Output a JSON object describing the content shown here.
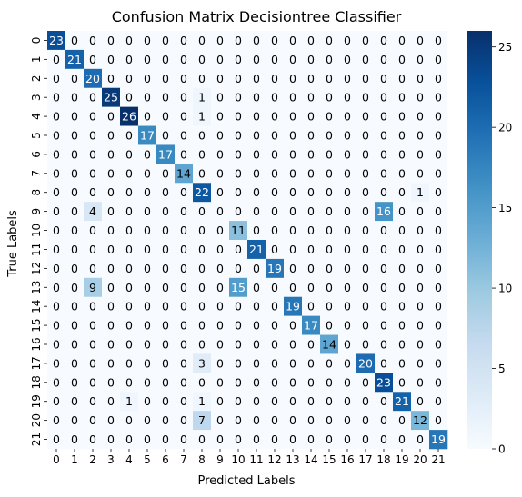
{
  "chart_data": {
    "type": "heatmap",
    "title": "Confusion Matrix Decisiontree Classifier",
    "xlabel": "Predicted Labels",
    "ylabel": "True Labels",
    "x_categories": [
      "0",
      "1",
      "2",
      "3",
      "4",
      "5",
      "6",
      "7",
      "8",
      "9",
      "10",
      "11",
      "12",
      "13",
      "14",
      "15",
      "16",
      "17",
      "18",
      "19",
      "20",
      "21"
    ],
    "y_categories": [
      "0",
      "1",
      "2",
      "3",
      "4",
      "5",
      "6",
      "7",
      "8",
      "9",
      "10",
      "11",
      "12",
      "13",
      "14",
      "15",
      "16",
      "17",
      "18",
      "19",
      "20",
      "21"
    ],
    "colormap": "Blues",
    "vmin": 0,
    "vmax": 26,
    "colorbar_ticks": [
      0,
      5,
      10,
      15,
      20,
      25
    ],
    "matrix": [
      [
        23,
        0,
        0,
        0,
        0,
        0,
        0,
        0,
        0,
        0,
        0,
        0,
        0,
        0,
        0,
        0,
        0,
        0,
        0,
        0,
        0,
        0
      ],
      [
        0,
        21,
        0,
        0,
        0,
        0,
        0,
        0,
        0,
        0,
        0,
        0,
        0,
        0,
        0,
        0,
        0,
        0,
        0,
        0,
        0,
        0
      ],
      [
        0,
        0,
        20,
        0,
        0,
        0,
        0,
        0,
        0,
        0,
        0,
        0,
        0,
        0,
        0,
        0,
        0,
        0,
        0,
        0,
        0,
        0
      ],
      [
        0,
        0,
        0,
        25,
        0,
        0,
        0,
        0,
        1,
        0,
        0,
        0,
        0,
        0,
        0,
        0,
        0,
        0,
        0,
        0,
        0,
        0
      ],
      [
        0,
        0,
        0,
        0,
        26,
        0,
        0,
        0,
        1,
        0,
        0,
        0,
        0,
        0,
        0,
        0,
        0,
        0,
        0,
        0,
        0,
        0
      ],
      [
        0,
        0,
        0,
        0,
        0,
        17,
        0,
        0,
        0,
        0,
        0,
        0,
        0,
        0,
        0,
        0,
        0,
        0,
        0,
        0,
        0,
        0
      ],
      [
        0,
        0,
        0,
        0,
        0,
        0,
        17,
        0,
        0,
        0,
        0,
        0,
        0,
        0,
        0,
        0,
        0,
        0,
        0,
        0,
        0,
        0
      ],
      [
        0,
        0,
        0,
        0,
        0,
        0,
        0,
        14,
        0,
        0,
        0,
        0,
        0,
        0,
        0,
        0,
        0,
        0,
        0,
        0,
        0,
        0
      ],
      [
        0,
        0,
        0,
        0,
        0,
        0,
        0,
        0,
        22,
        0,
        0,
        0,
        0,
        0,
        0,
        0,
        0,
        0,
        0,
        0,
        1,
        0
      ],
      [
        0,
        0,
        4,
        0,
        0,
        0,
        0,
        0,
        0,
        0,
        0,
        0,
        0,
        0,
        0,
        0,
        0,
        0,
        16,
        0,
        0,
        0
      ],
      [
        0,
        0,
        0,
        0,
        0,
        0,
        0,
        0,
        0,
        0,
        11,
        0,
        0,
        0,
        0,
        0,
        0,
        0,
        0,
        0,
        0,
        0
      ],
      [
        0,
        0,
        0,
        0,
        0,
        0,
        0,
        0,
        0,
        0,
        0,
        21,
        0,
        0,
        0,
        0,
        0,
        0,
        0,
        0,
        0,
        0
      ],
      [
        0,
        0,
        0,
        0,
        0,
        0,
        0,
        0,
        0,
        0,
        0,
        0,
        19,
        0,
        0,
        0,
        0,
        0,
        0,
        0,
        0,
        0
      ],
      [
        0,
        0,
        9,
        0,
        0,
        0,
        0,
        0,
        0,
        0,
        15,
        0,
        0,
        0,
        0,
        0,
        0,
        0,
        0,
        0,
        0,
        0
      ],
      [
        0,
        0,
        0,
        0,
        0,
        0,
        0,
        0,
        0,
        0,
        0,
        0,
        0,
        19,
        0,
        0,
        0,
        0,
        0,
        0,
        0,
        0
      ],
      [
        0,
        0,
        0,
        0,
        0,
        0,
        0,
        0,
        0,
        0,
        0,
        0,
        0,
        0,
        17,
        0,
        0,
        0,
        0,
        0,
        0,
        0
      ],
      [
        0,
        0,
        0,
        0,
        0,
        0,
        0,
        0,
        0,
        0,
        0,
        0,
        0,
        0,
        0,
        14,
        0,
        0,
        0,
        0,
        0,
        0
      ],
      [
        0,
        0,
        0,
        0,
        0,
        0,
        0,
        0,
        3,
        0,
        0,
        0,
        0,
        0,
        0,
        0,
        0,
        20,
        0,
        0,
        0,
        0
      ],
      [
        0,
        0,
        0,
        0,
        0,
        0,
        0,
        0,
        0,
        0,
        0,
        0,
        0,
        0,
        0,
        0,
        0,
        0,
        23,
        0,
        0,
        0
      ],
      [
        0,
        0,
        0,
        0,
        1,
        0,
        0,
        0,
        1,
        0,
        0,
        0,
        0,
        0,
        0,
        0,
        0,
        0,
        0,
        21,
        0,
        0
      ],
      [
        0,
        0,
        0,
        0,
        0,
        0,
        0,
        0,
        7,
        0,
        0,
        0,
        0,
        0,
        0,
        0,
        0,
        0,
        0,
        0,
        12,
        0
      ],
      [
        0,
        0,
        0,
        0,
        0,
        0,
        0,
        0,
        0,
        0,
        0,
        0,
        0,
        0,
        0,
        0,
        0,
        0,
        0,
        0,
        0,
        19
      ]
    ]
  }
}
